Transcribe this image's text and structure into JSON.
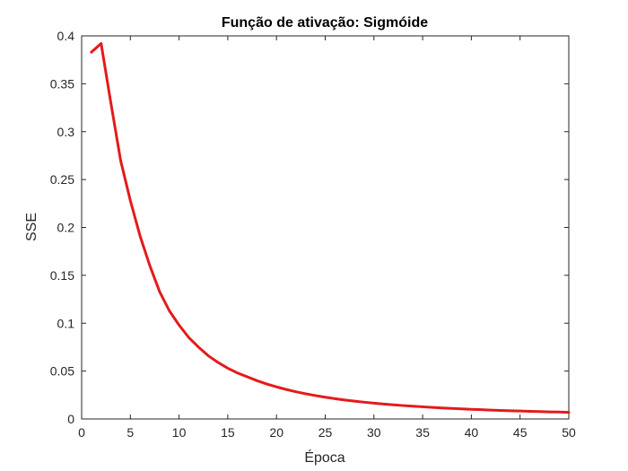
{
  "chart_data": {
    "type": "line",
    "title": "Função de ativação: Sigmóide",
    "xlabel": "Época",
    "ylabel": "SSE",
    "xlim": [
      0,
      50
    ],
    "ylim": [
      0,
      0.4
    ],
    "xticks": [
      "0",
      "5",
      "10",
      "15",
      "20",
      "25",
      "30",
      "35",
      "40",
      "45",
      "50"
    ],
    "yticks": [
      "0",
      "0.05",
      "0.1",
      "0.15",
      "0.2",
      "0.25",
      "0.3",
      "0.35",
      "0.4"
    ],
    "grid": false,
    "series": [
      {
        "color": "#e41a1c",
        "x": [
          1,
          2,
          3,
          4,
          5,
          6,
          7,
          8,
          9,
          10,
          11,
          12,
          13,
          14,
          15,
          16,
          17,
          18,
          19,
          20,
          21,
          22,
          23,
          24,
          25,
          26,
          27,
          28,
          29,
          30,
          31,
          32,
          33,
          34,
          35,
          36,
          37,
          38,
          39,
          40,
          41,
          42,
          43,
          44,
          45,
          46,
          47,
          48,
          49,
          50
        ],
        "y": [
          0.383,
          0.392,
          0.33,
          0.27,
          0.228,
          0.191,
          0.16,
          0.133,
          0.113,
          0.098,
          0.085,
          0.075,
          0.066,
          0.059,
          0.053,
          0.048,
          0.044,
          0.04,
          0.0365,
          0.0335,
          0.0308,
          0.0284,
          0.0263,
          0.0244,
          0.0227,
          0.0212,
          0.0198,
          0.0186,
          0.0175,
          0.0165,
          0.0156,
          0.0148,
          0.014,
          0.0133,
          0.0127,
          0.0121,
          0.0115,
          0.011,
          0.0105,
          0.0101,
          0.0097,
          0.0093,
          0.0089,
          0.0086,
          0.0083,
          0.008,
          0.0077,
          0.0074,
          0.0072,
          0.0069
        ]
      }
    ]
  }
}
